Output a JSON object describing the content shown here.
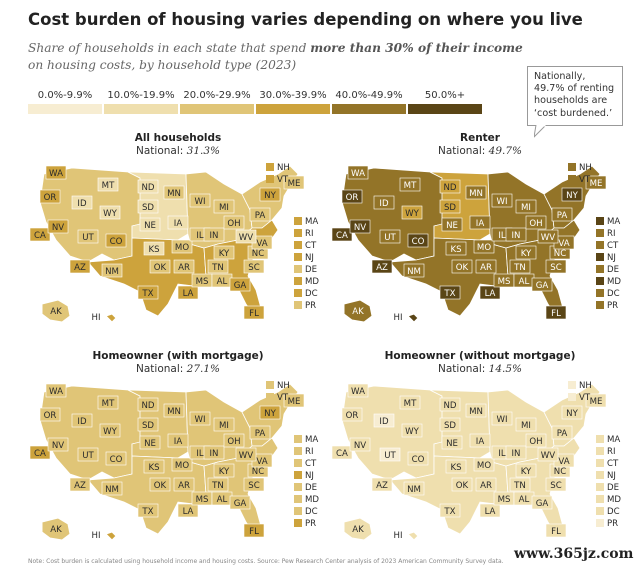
{
  "title": "Cost burden of housing varies depending on where you live",
  "subtitle_pre": "Share of households in each state that spend ",
  "subtitle_bold": "more than 30% of their income",
  "subtitle_post": " on housing costs, by household type (2023)",
  "legend": [
    {
      "label": "0.0%-9.9%",
      "color": "#f7edd2"
    },
    {
      "label": "10.0%-19.9%",
      "color": "#efdfae"
    },
    {
      "label": "20.0%-29.9%",
      "color": "#e0c577"
    },
    {
      "label": "30.0%-39.9%",
      "color": "#cda33c"
    },
    {
      "label": "40.0%-49.9%",
      "color": "#937428"
    },
    {
      "label": "50.0%+",
      "color": "#5a4516"
    }
  ],
  "callout": "Nationally, 49.7% of renting households are ‘cost burdened.’",
  "panels": [
    {
      "title": "All households",
      "national_label": "National:",
      "national_value": "31.3%",
      "region": {
        "west": 2,
        "south": 3,
        "plains": 1,
        "midwest": 2,
        "northeast": 2,
        "southeast": 3
      },
      "states": {
        "WA": 3,
        "OR": 3,
        "CA": 3,
        "NV": 3,
        "ID": 1,
        "MT": 1,
        "WY": 1,
        "UT": 2,
        "CO": 3,
        "AZ": 3,
        "NM": 2,
        "ND": 1,
        "SD": 1,
        "NE": 1,
        "KS": 1,
        "OK": 2,
        "TX": 3,
        "MN": 2,
        "IA": 1,
        "MO": 2,
        "AR": 2,
        "LA": 3,
        "WI": 2,
        "IL": 2,
        "MI": 2,
        "IN": 2,
        "OH": 2,
        "KY": 2,
        "TN": 2,
        "MS": 2,
        "AL": 2,
        "GA": 3,
        "FL": 3,
        "SC": 2,
        "NC": 2,
        "VA": 2,
        "WV": 1,
        "PA": 2,
        "NY": 3,
        "ME": 2,
        "AK": 2,
        "HI": 3
      },
      "side": [
        [
          "NH",
          3
        ],
        [
          "VT",
          3
        ],
        [
          "MA",
          3
        ],
        [
          "RI",
          3
        ],
        [
          "CT",
          3
        ],
        [
          "NJ",
          3
        ],
        [
          "DE",
          2
        ],
        [
          "MD",
          3
        ],
        [
          "DC",
          3
        ],
        [
          "PR",
          2
        ]
      ]
    },
    {
      "title": "Renter",
      "national_label": "National:",
      "national_value": "49.7%",
      "region": {
        "west": 4,
        "south": 4,
        "plains": 3,
        "midwest": 4,
        "northeast": 4,
        "southeast": 4
      },
      "states": {
        "WA": 4,
        "OR": 5,
        "CA": 5,
        "NV": 5,
        "ID": 4,
        "MT": 4,
        "WY": 3,
        "UT": 4,
        "CO": 5,
        "AZ": 5,
        "NM": 4,
        "ND": 3,
        "SD": 3,
        "NE": 4,
        "KS": 4,
        "OK": 4,
        "TX": 5,
        "MN": 4,
        "IA": 4,
        "MO": 4,
        "AR": 4,
        "LA": 5,
        "WI": 4,
        "IL": 4,
        "MI": 4,
        "IN": 4,
        "OH": 4,
        "KY": 4,
        "TN": 4,
        "MS": 4,
        "AL": 4,
        "GA": 4,
        "FL": 5,
        "SC": 4,
        "NC": 4,
        "VA": 4,
        "WV": 4,
        "PA": 4,
        "NY": 5,
        "ME": 4,
        "AK": 4,
        "HI": 5
      },
      "side": [
        [
          "NH",
          4
        ],
        [
          "VT",
          4
        ],
        [
          "MA",
          5
        ],
        [
          "RI",
          4
        ],
        [
          "CT",
          4
        ],
        [
          "NJ",
          5
        ],
        [
          "DE",
          4
        ],
        [
          "MD",
          5
        ],
        [
          "DC",
          4
        ],
        [
          "PR",
          4
        ]
      ]
    },
    {
      "title": "Homeowner (with mortgage)",
      "national_label": "National:",
      "national_value": "27.1%",
      "region": {
        "west": 2,
        "south": 2,
        "plains": 2,
        "midwest": 2,
        "northeast": 2,
        "southeast": 2
      },
      "states": {
        "WA": 2,
        "OR": 2,
        "CA": 3,
        "NV": 2,
        "ID": 2,
        "MT": 2,
        "WY": 2,
        "UT": 2,
        "CO": 2,
        "AZ": 2,
        "NM": 2,
        "ND": 2,
        "SD": 2,
        "NE": 2,
        "KS": 2,
        "OK": 2,
        "TX": 2,
        "MN": 2,
        "IA": 2,
        "MO": 2,
        "AR": 2,
        "LA": 2,
        "WI": 2,
        "IL": 2,
        "MI": 2,
        "IN": 2,
        "OH": 2,
        "KY": 2,
        "TN": 2,
        "MS": 2,
        "AL": 2,
        "GA": 2,
        "FL": 3,
        "SC": 2,
        "NC": 2,
        "VA": 2,
        "WV": 2,
        "PA": 2,
        "NY": 3,
        "ME": 2,
        "AK": 2,
        "HI": 3
      },
      "side": [
        [
          "NH",
          2
        ],
        [
          "VT",
          2
        ],
        [
          "MA",
          2
        ],
        [
          "RI",
          2
        ],
        [
          "CT",
          2
        ],
        [
          "NJ",
          3
        ],
        [
          "DE",
          2
        ],
        [
          "MD",
          2
        ],
        [
          "DC",
          2
        ],
        [
          "PR",
          3
        ]
      ]
    },
    {
      "title": "Homeowner (without mortgage)",
      "national_label": "National:",
      "national_value": "14.5%",
      "region": {
        "west": 1,
        "south": 1,
        "plains": 1,
        "midwest": 1,
        "northeast": 1,
        "southeast": 1
      },
      "states": {
        "WA": 1,
        "OR": 1,
        "CA": 1,
        "NV": 1,
        "ID": 0,
        "MT": 1,
        "WY": 1,
        "UT": 0,
        "CO": 1,
        "AZ": 1,
        "NM": 1,
        "ND": 1,
        "SD": 1,
        "NE": 1,
        "KS": 1,
        "OK": 1,
        "TX": 1,
        "MN": 1,
        "IA": 1,
        "MO": 1,
        "AR": 1,
        "LA": 1,
        "WI": 1,
        "IL": 1,
        "MI": 1,
        "IN": 1,
        "OH": 1,
        "KY": 1,
        "TN": 1,
        "MS": 1,
        "AL": 1,
        "GA": 1,
        "FL": 1,
        "SC": 1,
        "NC": 1,
        "VA": 1,
        "WV": 1,
        "PA": 1,
        "NY": 1,
        "ME": 1,
        "AK": 1,
        "HI": 1
      },
      "side": [
        [
          "NH",
          0
        ],
        [
          "VT",
          0
        ],
        [
          "MA",
          1
        ],
        [
          "RI",
          1
        ],
        [
          "CT",
          1
        ],
        [
          "NJ",
          1
        ],
        [
          "DE",
          1
        ],
        [
          "MD",
          1
        ],
        [
          "DC",
          1
        ],
        [
          "PR",
          0
        ]
      ]
    }
  ],
  "footer": "Note: Cost burden is calculated using household income and housing costs. Source: Pew Research Center analysis of 2023 American Community Survey data.",
  "watermark": "www.365jz.com"
}
